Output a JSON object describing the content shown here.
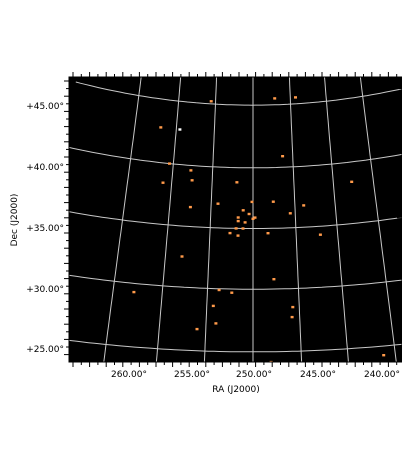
{
  "chart_data": {
    "type": "scatter",
    "projection": "celestial sky map (RA/Dec)",
    "title": "",
    "xlabel": "RA (J2000)",
    "ylabel": "Dec (J2000)",
    "x_ticks": [
      {
        "value": 260,
        "label": "260.00°"
      },
      {
        "value": 255,
        "label": "255.00°"
      },
      {
        "value": 250,
        "label": "250.00°"
      },
      {
        "value": 245,
        "label": "245.00°"
      },
      {
        "value": 240,
        "label": "240.00°"
      }
    ],
    "y_ticks": [
      {
        "value": 45,
        "label": "+45.00°"
      },
      {
        "value": 40,
        "label": "+40.00°"
      },
      {
        "value": 35,
        "label": "+35.00°"
      },
      {
        "value": 30,
        "label": "+30.00°"
      },
      {
        "value": 25,
        "label": "+25.00°"
      }
    ],
    "ra_grid": [
      263,
      258.5,
      254.3,
      250,
      245.7,
      241.6,
      237.5
    ],
    "dec_grid": [
      45,
      40,
      35,
      30,
      25
    ],
    "grid": true,
    "background": "#000000",
    "grid_color": "#c8c8c8",
    "point_color": "#ff9a4a",
    "highlight_color": "#ffffff",
    "points": [
      {
        "ra": 254.4,
        "dec": 47.2
      },
      {
        "ra": 254.8,
        "dec": 45.2
      },
      {
        "ra": 247.5,
        "dec": 45.5
      },
      {
        "ra": 245.1,
        "dec": 45.5
      },
      {
        "ra": 258.1,
        "dec": 42.8,
        "highlight": true
      },
      {
        "ra": 260.2,
        "dec": 42.8
      },
      {
        "ra": 246.8,
        "dec": 40.9
      },
      {
        "ra": 258.9,
        "dec": 40.0
      },
      {
        "ra": 256.6,
        "dec": 39.6
      },
      {
        "ra": 256.4,
        "dec": 38.8
      },
      {
        "ra": 251.7,
        "dec": 38.8
      },
      {
        "ra": 259.4,
        "dec": 38.4
      },
      {
        "ra": 239.7,
        "dec": 38.4
      },
      {
        "ra": 253.6,
        "dec": 37.0
      },
      {
        "ra": 250.1,
        "dec": 37.2
      },
      {
        "ra": 247.9,
        "dec": 37.2
      },
      {
        "ra": 256.4,
        "dec": 36.6
      },
      {
        "ra": 251.0,
        "dec": 36.5
      },
      {
        "ra": 244.8,
        "dec": 36.8
      },
      {
        "ra": 246.2,
        "dec": 36.2
      },
      {
        "ra": 250.4,
        "dec": 36.2
      },
      {
        "ra": 251.5,
        "dec": 35.9
      },
      {
        "ra": 250.0,
        "dec": 35.8
      },
      {
        "ra": 249.8,
        "dec": 35.9
      },
      {
        "ra": 251.5,
        "dec": 35.6
      },
      {
        "ra": 250.8,
        "dec": 35.5
      },
      {
        "ra": 251.7,
        "dec": 35.0
      },
      {
        "ra": 251.0,
        "dec": 35.0
      },
      {
        "ra": 252.3,
        "dec": 34.6
      },
      {
        "ra": 248.5,
        "dec": 34.6
      },
      {
        "ra": 243.3,
        "dec": 34.3
      },
      {
        "ra": 251.5,
        "dec": 34.4
      },
      {
        "ra": 256.9,
        "dec": 32.5
      },
      {
        "ra": 248.0,
        "dec": 30.8
      },
      {
        "ra": 253.2,
        "dec": 29.9
      },
      {
        "ra": 252.0,
        "dec": 29.7
      },
      {
        "ra": 261.1,
        "dec": 29.3
      },
      {
        "ra": 253.7,
        "dec": 28.6
      },
      {
        "ra": 246.3,
        "dec": 28.5
      },
      {
        "ra": 246.4,
        "dec": 27.7
      },
      {
        "ra": 253.4,
        "dec": 27.2
      },
      {
        "ra": 255.1,
        "dec": 26.7
      },
      {
        "ra": 248.4,
        "dec": 24.2
      },
      {
        "ra": 238.5,
        "dec": 24.3
      }
    ]
  }
}
